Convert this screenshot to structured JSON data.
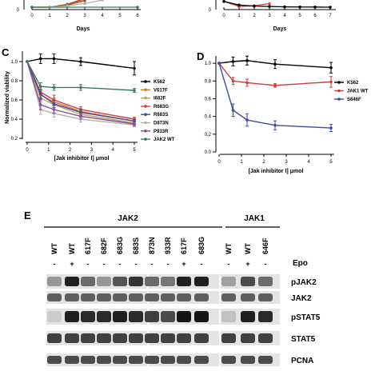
{
  "panels": {
    "top_left": {
      "xlabel": "Days",
      "xticks": [
        "0",
        "1",
        "2",
        "3",
        "4",
        "5",
        "6"
      ],
      "yticks": [
        "0"
      ]
    },
    "top_right": {
      "xlabel": "Days",
      "xticks": [
        "0",
        "1",
        "2",
        "3",
        "4",
        "5",
        "6",
        "7"
      ],
      "yticks": [
        "0"
      ]
    },
    "C": {
      "label": "C"
    },
    "D": {
      "label": "D"
    },
    "E": {
      "label": "E"
    }
  },
  "chart_data": [
    {
      "panel": "top-left",
      "type": "line",
      "xlabel": "Days",
      "note": "cropped at top of image; only lowest portion visible",
      "x": [
        0,
        1,
        2,
        3,
        4,
        5,
        6
      ],
      "xlim": [
        0,
        6
      ],
      "series": [
        {
          "color": "#c03030",
          "x": [
            0,
            1,
            2,
            3
          ],
          "values": [
            0,
            0,
            0.4,
            1.2
          ]
        },
        {
          "color": "#e08a2a",
          "x": [
            0,
            1,
            2,
            3
          ],
          "values": [
            0,
            0,
            0.3,
            1.0
          ]
        },
        {
          "color": "#8a5a2a",
          "x": [
            0,
            1,
            2,
            3
          ],
          "values": [
            0,
            0,
            0.3,
            0.9
          ]
        },
        {
          "color": "#b0b0b0",
          "x": [
            0,
            1,
            2,
            3,
            4
          ],
          "values": [
            0,
            0,
            0.2,
            0.5,
            1.0
          ]
        },
        {
          "color": "#3a7a5a",
          "x": [
            0,
            6
          ],
          "values": [
            0,
            0
          ]
        }
      ]
    },
    {
      "panel": "top-right",
      "type": "line",
      "xlabel": "Days",
      "note": "cropped at top of image; only lowest portion visible",
      "xlim": [
        0,
        7
      ],
      "series": [
        {
          "color": "#e03a3a",
          "x": [
            0,
            1,
            2,
            3
          ],
          "values": [
            0.8,
            0.1,
            0.2,
            0.5
          ]
        },
        {
          "color": "#000000",
          "x": [
            0,
            1,
            2,
            3,
            4,
            5,
            6,
            7
          ],
          "values": [
            0.8,
            0.3,
            0.15,
            0.1,
            0.05,
            0.03,
            0.02,
            0.0
          ]
        }
      ]
    },
    {
      "panel": "C",
      "type": "line",
      "xlabel": "[Jak inhibitor I] μmol",
      "ylabel": "Normalized viability",
      "x": [
        0,
        0.625,
        1.25,
        2.5,
        5
      ],
      "xticks": [
        "0",
        "1",
        "2",
        "3",
        "4",
        "5"
      ],
      "yticks": [
        "0.2",
        "0.4",
        "0.6",
        "0.8",
        "1.0"
      ],
      "xlim": [
        0,
        5
      ],
      "ylim": [
        0.2,
        1.1
      ],
      "series": [
        {
          "name": "K562",
          "color": "#000000",
          "values": [
            1.0,
            1.03,
            1.03,
            1.0,
            0.93
          ],
          "err": [
            0,
            0.05,
            0.05,
            0.04,
            0.07
          ]
        },
        {
          "name": "V617F",
          "color": "#e8732a",
          "values": [
            1.0,
            0.65,
            0.58,
            0.48,
            0.38
          ],
          "err": [
            0,
            0.05,
            0.04,
            0.03,
            0.02
          ]
        },
        {
          "name": "I682F",
          "color": "#b5a85a",
          "values": [
            1.0,
            0.62,
            0.55,
            0.45,
            0.36
          ],
          "err": [
            0,
            0.04,
            0.03,
            0.03,
            0.02
          ]
        },
        {
          "name": "R683G",
          "color": "#d63838",
          "values": [
            1.0,
            0.68,
            0.6,
            0.5,
            0.4
          ],
          "err": [
            0,
            0.06,
            0.05,
            0.03,
            0.02
          ]
        },
        {
          "name": "R683S",
          "color": "#3c4ba0",
          "values": [
            1.0,
            0.66,
            0.56,
            0.47,
            0.38
          ],
          "err": [
            0,
            0.05,
            0.04,
            0.03,
            0.02
          ]
        },
        {
          "name": "D873N",
          "color": "#b0b0b0",
          "values": [
            1.0,
            0.5,
            0.46,
            0.4,
            0.34
          ],
          "err": [
            0,
            0.05,
            0.04,
            0.03,
            0.02
          ]
        },
        {
          "name": "P933R",
          "color": "#8b4a9a",
          "values": [
            1.0,
            0.55,
            0.5,
            0.43,
            0.35
          ],
          "err": [
            0,
            0.05,
            0.04,
            0.03,
            0.02
          ]
        },
        {
          "name": "JAK2 WT",
          "color": "#3a7a5a",
          "values": [
            1.0,
            0.74,
            0.73,
            0.73,
            0.7
          ],
          "err": [
            0,
            0.04,
            0.03,
            0.03,
            0.02
          ]
        }
      ]
    },
    {
      "panel": "D",
      "type": "line",
      "xlabel": "[Jak inhibitor I] μmol",
      "x": [
        0,
        0.625,
        1.25,
        2.5,
        5
      ],
      "xticks": [
        "0",
        "1",
        "2",
        "3",
        "4",
        "5"
      ],
      "yticks": [
        "0.0",
        "0.2",
        "0.4",
        "0.6",
        "0.8",
        "1.0"
      ],
      "xlim": [
        0,
        5
      ],
      "ylim": [
        0,
        1.1
      ],
      "series": [
        {
          "name": "K562",
          "color": "#000000",
          "values": [
            1.0,
            1.02,
            1.03,
            0.99,
            0.95
          ],
          "err": [
            0,
            0.05,
            0.05,
            0.05,
            0.06
          ]
        },
        {
          "name": "JAK1 WT",
          "color": "#d63838",
          "values": [
            1.0,
            0.8,
            0.78,
            0.75,
            0.79
          ],
          "err": [
            0,
            0.04,
            0.04,
            0.02,
            0.06
          ]
        },
        {
          "name": "S646F",
          "color": "#3c4ba0",
          "values": [
            1.0,
            0.47,
            0.36,
            0.3,
            0.27
          ],
          "err": [
            0,
            0.07,
            0.07,
            0.05,
            0.04
          ]
        }
      ]
    }
  ],
  "blot": {
    "groups": [
      {
        "name": "JAK2"
      },
      {
        "name": "JAK1"
      }
    ],
    "lanes": [
      "WT",
      "WT",
      "617F",
      "682F",
      "683G",
      "683S",
      "873N",
      "933R",
      "617F",
      "683G",
      "WT",
      "WT",
      "646F"
    ],
    "epo_signs": [
      "-",
      "+",
      "-",
      "-",
      "-",
      "-",
      "-",
      "-",
      "+",
      "-",
      "-",
      "+",
      "-"
    ],
    "epo_label": "Epo",
    "rows": [
      "pJAK2",
      "JAK2",
      "pSTAT5",
      "STAT5",
      "PCNA"
    ],
    "intensity": {
      "pJAK2": [
        0.35,
        0.9,
        0.55,
        0.35,
        0.65,
        0.8,
        0.55,
        0.5,
        0.9,
        0.9,
        0.3,
        0.7,
        0.55
      ],
      "JAK2": [
        0.6,
        0.6,
        0.6,
        0.6,
        0.6,
        0.6,
        0.6,
        0.6,
        0.6,
        0.6,
        0.6,
        0.6,
        0.6
      ],
      "pSTAT5": [
        0.1,
        0.9,
        0.85,
        0.85,
        0.9,
        0.85,
        0.75,
        0.7,
        0.95,
        0.95,
        0.15,
        0.9,
        0.85
      ],
      "STAT5": [
        0.75,
        0.75,
        0.75,
        0.75,
        0.75,
        0.75,
        0.75,
        0.75,
        0.75,
        0.75,
        0.75,
        0.75,
        0.75
      ],
      "PCNA": [
        0.7,
        0.7,
        0.7,
        0.7,
        0.7,
        0.7,
        0.7,
        0.7,
        0.7,
        0.7,
        0.7,
        0.7,
        0.7
      ]
    }
  }
}
